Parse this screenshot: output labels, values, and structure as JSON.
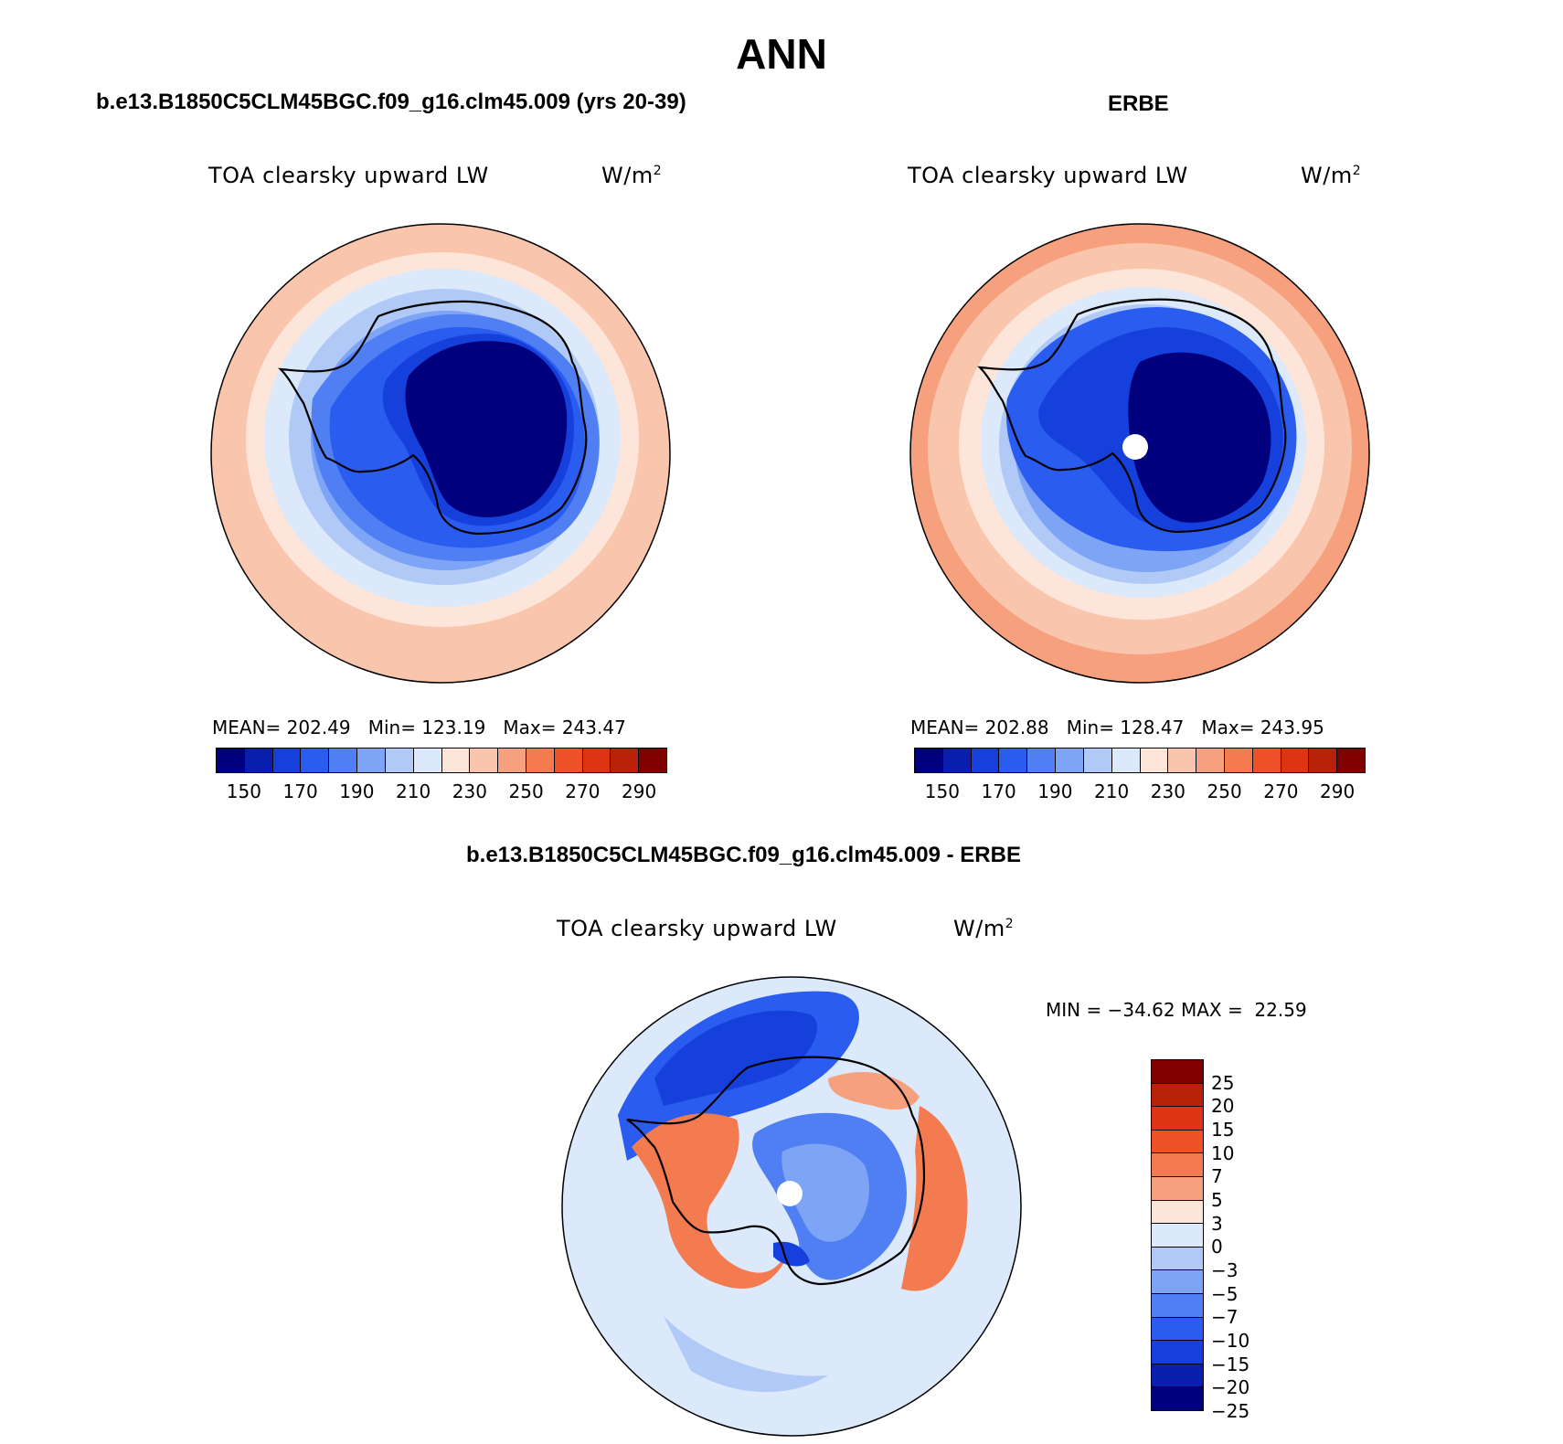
{
  "figure": {
    "title": "ANN"
  },
  "palette": {
    "abs": [
      "#00007f",
      "#0a1fb0",
      "#1640dc",
      "#2a5cf0",
      "#4f7ff2",
      "#7ea4f5",
      "#b0c9f7",
      "#dbe9fb",
      "#fde6d9",
      "#f9c6ad",
      "#f6a07e",
      "#f47a4f",
      "#ee5128",
      "#dd3513",
      "#b82208",
      "#800000"
    ],
    "diff": [
      "#800000",
      "#b82208",
      "#dd3513",
      "#ee5128",
      "#f47a4f",
      "#f6a07e",
      "#fde6d9",
      "#dbe9fb",
      "#b0c9f7",
      "#7ea4f5",
      "#4f7ff2",
      "#2a5cf0",
      "#1640dc",
      "#0a1fb0",
      "#00007f"
    ]
  },
  "panels": {
    "model": {
      "title": "b.e13.B1850C5CLM45BGC.f09_g16.clm45.009 (yrs 20-39)",
      "variable": "TOA clearsky upward LW",
      "units": "W/m",
      "units_exp": "2",
      "stats": "MEAN= 202.49   Min= 123.19   Max= 243.47",
      "colorbar_labels": [
        "150",
        "170",
        "190",
        "210",
        "230",
        "250",
        "270",
        "290"
      ],
      "chart_data": {
        "type": "heatmap",
        "projection": "south-polar-stereographic",
        "variable": "TOA clearsky upward LW",
        "units": "W/m^2",
        "mean": 202.49,
        "min": 123.19,
        "max": 243.47,
        "levels": [
          140,
          150,
          160,
          170,
          180,
          190,
          200,
          210,
          220,
          230,
          240,
          250,
          260,
          270,
          280,
          290
        ]
      }
    },
    "obs": {
      "title": "ERBE",
      "variable": "TOA clearsky upward LW",
      "units": "W/m",
      "units_exp": "2",
      "stats": "MEAN= 202.88   Min= 128.47   Max= 243.95",
      "colorbar_labels": [
        "150",
        "170",
        "190",
        "210",
        "230",
        "250",
        "270",
        "290"
      ],
      "chart_data": {
        "type": "heatmap",
        "projection": "south-polar-stereographic",
        "variable": "TOA clearsky upward LW",
        "units": "W/m^2",
        "mean": 202.88,
        "min": 128.47,
        "max": 243.95,
        "levels": [
          140,
          150,
          160,
          170,
          180,
          190,
          200,
          210,
          220,
          230,
          240,
          250,
          260,
          270,
          280,
          290
        ]
      }
    },
    "diff": {
      "title": "b.e13.B1850C5CLM45BGC.f09_g16.clm45.009 - ERBE",
      "variable": "TOA clearsky upward LW",
      "units": "W/m",
      "units_exp": "2",
      "stats": "MIN = −34.62 MAX =  22.59",
      "colorbar_labels": [
        "25",
        "20",
        "15",
        "10",
        "7",
        "5",
        "3",
        "0",
        "−3",
        "−5",
        "−7",
        "−10",
        "−15",
        "−20",
        "−25"
      ],
      "chart_data": {
        "type": "heatmap",
        "projection": "south-polar-stereographic",
        "variable": "TOA clearsky upward LW difference",
        "units": "W/m^2",
        "min": -34.62,
        "max": 22.59,
        "levels": [
          25,
          20,
          15,
          10,
          7,
          5,
          3,
          0,
          -3,
          -5,
          -7,
          -10,
          -15,
          -20,
          -25
        ]
      }
    }
  }
}
